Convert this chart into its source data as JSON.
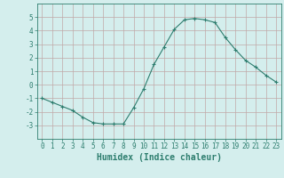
{
  "x": [
    0,
    1,
    2,
    3,
    4,
    5,
    6,
    7,
    8,
    9,
    10,
    11,
    12,
    13,
    14,
    15,
    16,
    17,
    18,
    19,
    20,
    21,
    22,
    23
  ],
  "y": [
    -1.0,
    -1.3,
    -1.6,
    -1.9,
    -2.4,
    -2.8,
    -2.9,
    -2.9,
    -2.9,
    -1.7,
    -0.3,
    1.5,
    2.8,
    4.1,
    4.8,
    4.9,
    4.8,
    4.6,
    3.5,
    2.6,
    1.8,
    1.3,
    0.7,
    0.2
  ],
  "line_color": "#2d7d6e",
  "marker": "+",
  "marker_size": 3,
  "bg_color": "#d4eeed",
  "grid_color": "#c0a8a8",
  "xlabel": "Humidex (Indice chaleur)",
  "ylim": [
    -4,
    6
  ],
  "xlim": [
    -0.5,
    23.5
  ],
  "yticks": [
    -3,
    -2,
    -1,
    0,
    1,
    2,
    3,
    4,
    5
  ],
  "xticks": [
    0,
    1,
    2,
    3,
    4,
    5,
    6,
    7,
    8,
    9,
    10,
    11,
    12,
    13,
    14,
    15,
    16,
    17,
    18,
    19,
    20,
    21,
    22,
    23
  ],
  "tick_color": "#2d7d6e",
  "label_fontsize": 7,
  "tick_fontsize": 5.5
}
